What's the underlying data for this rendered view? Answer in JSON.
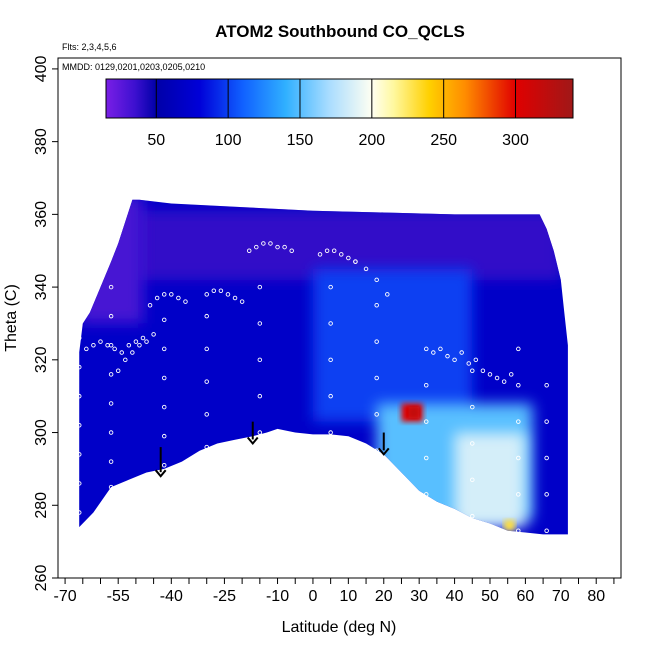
{
  "chart_data": {
    "type": "heatmap",
    "title": "ATOM2 Southbound CO_QCLS",
    "annotations": {
      "flights": "Flts: 2,3,4,5,6",
      "dates": "MMDD: 0129,0201,0203,0205,0210"
    },
    "xlabel": "Latitude (deg N)",
    "ylabel": "Theta (C)",
    "xlim": [
      -72,
      87
    ],
    "ylim": [
      260,
      403
    ],
    "x_ticks": [
      -70,
      -65,
      -60,
      -55,
      -50,
      -45,
      -40,
      -35,
      -30,
      -25,
      -20,
      -15,
      -10,
      -5,
      0,
      5,
      10,
      15,
      20,
      25,
      30,
      35,
      40,
      45,
      50,
      55,
      60,
      65,
      70,
      75,
      80,
      85
    ],
    "x_tick_labels": [
      "-70",
      "-55",
      "-40",
      "-25",
      "-10",
      "0",
      "10",
      "20",
      "30",
      "40",
      "50",
      "60",
      "70",
      "80"
    ],
    "x_tick_label_values": [
      -70,
      -55,
      -40,
      -25,
      -10,
      0,
      10,
      20,
      30,
      40,
      50,
      60,
      70,
      80
    ],
    "y_ticks": [
      260,
      280,
      300,
      320,
      340,
      360,
      380,
      400
    ],
    "y_tick_labels": [
      "260",
      "280",
      "300",
      "320",
      "340",
      "360",
      "380",
      "400"
    ],
    "colorbar": {
      "range": [
        15,
        340
      ],
      "ticks": [
        50,
        100,
        150,
        200,
        250,
        300
      ],
      "tick_labels": [
        "50",
        "100",
        "150",
        "200",
        "250",
        "300"
      ],
      "stops": [
        {
          "v": 15,
          "c": "#7a1fe6"
        },
        {
          "v": 35,
          "c": "#3d10d0"
        },
        {
          "v": 50,
          "c": "#0000a8"
        },
        {
          "v": 80,
          "c": "#0000d8"
        },
        {
          "v": 110,
          "c": "#1060ff"
        },
        {
          "v": 140,
          "c": "#30b0ff"
        },
        {
          "v": 170,
          "c": "#a8dcff"
        },
        {
          "v": 200,
          "c": "#fffff2"
        },
        {
          "v": 215,
          "c": "#fff8a0"
        },
        {
          "v": 240,
          "c": "#ffd000"
        },
        {
          "v": 265,
          "c": "#ff8c00"
        },
        {
          "v": 300,
          "c": "#e00000"
        },
        {
          "v": 340,
          "c": "#a01818"
        }
      ]
    },
    "surface_boundary": [
      [
        -66,
        274
      ],
      [
        -62,
        278
      ],
      [
        -57,
        285
      ],
      [
        -52,
        287
      ],
      [
        -47,
        289
      ],
      [
        -42,
        290
      ],
      [
        -37,
        292
      ],
      [
        -32,
        295
      ],
      [
        -27,
        297
      ],
      [
        -22,
        298
      ],
      [
        -17,
        299
      ],
      [
        -13,
        300
      ],
      [
        -10,
        301
      ],
      [
        -5,
        300
      ],
      [
        0,
        299.5
      ],
      [
        5,
        299.5
      ],
      [
        10,
        299
      ],
      [
        15,
        297
      ],
      [
        20,
        294
      ],
      [
        25,
        289
      ],
      [
        30,
        284
      ],
      [
        35,
        281
      ],
      [
        40,
        279
      ],
      [
        45,
        276.5
      ],
      [
        50,
        275
      ],
      [
        55,
        273
      ],
      [
        60,
        272.5
      ],
      [
        65,
        272
      ],
      [
        72,
        272
      ]
    ],
    "top_boundary": [
      [
        -66,
        322
      ],
      [
        -65,
        330
      ],
      [
        -63,
        333
      ],
      [
        -60,
        340
      ],
      [
        -57,
        347
      ],
      [
        -55,
        352
      ],
      [
        -53,
        358
      ],
      [
        -51,
        364
      ],
      [
        -49,
        364
      ],
      [
        -40,
        363
      ],
      [
        -20,
        362
      ],
      [
        0,
        361
      ],
      [
        20,
        360.5
      ],
      [
        40,
        360
      ],
      [
        60,
        360
      ],
      [
        64,
        360
      ],
      [
        66,
        356
      ],
      [
        68,
        350
      ],
      [
        70,
        342
      ],
      [
        71,
        333
      ],
      [
        72,
        324
      ]
    ],
    "field_regions": [
      {
        "name": "background",
        "value": 70
      },
      {
        "name": "upper-band",
        "lat": [
          -50,
          70
        ],
        "theta": [
          342,
          361
        ],
        "value": 38
      },
      {
        "name": "southern-cap",
        "lat": [
          -66,
          -48
        ],
        "theta": [
          330,
          365
        ],
        "value": 32
      },
      {
        "name": "mid-blue-band",
        "lat": [
          0,
          45
        ],
        "theta": [
          303,
          345
        ],
        "value": 100
      },
      {
        "name": "tropical-lower",
        "lat": [
          18,
          62
        ],
        "theta": [
          276,
          308
        ],
        "value": 150
      },
      {
        "name": "tropical-plume",
        "lat": [
          40,
          60
        ],
        "theta": [
          274,
          300
        ],
        "value": 185
      },
      {
        "name": "hotspot",
        "lat": [
          25,
          31
        ],
        "theta": [
          303,
          308
        ],
        "value": 300
      },
      {
        "name": "hotspot-core",
        "lat": [
          27,
          30
        ],
        "theta": [
          304,
          307
        ],
        "value": 320
      },
      {
        "name": "yellow-pocket",
        "lat": [
          54,
          57
        ],
        "theta": [
          273,
          276
        ],
        "value": 230
      }
    ],
    "flight_tracks": [
      {
        "lat": [
          -64,
          -62,
          -60,
          -58,
          -56,
          -54,
          -52,
          -50,
          -48
        ],
        "theta": [
          323,
          324,
          325,
          324,
          323,
          322,
          324,
          325,
          326
        ]
      },
      {
        "lat": [
          -55,
          -53,
          -51,
          -49,
          -47,
          -45
        ],
        "theta": [
          317,
          320,
          322,
          324,
          325,
          327
        ]
      },
      {
        "lat": [
          -46,
          -44,
          -42,
          -40,
          -38,
          -36
        ],
        "theta": [
          335,
          337,
          338,
          338,
          337,
          336
        ]
      },
      {
        "lat": [
          -30,
          -28,
          -26,
          -24,
          -22,
          -20
        ],
        "theta": [
          338,
          339,
          339,
          338,
          337,
          336
        ]
      },
      {
        "lat": [
          -18,
          -16,
          -14,
          -12,
          -10,
          -8,
          -6
        ],
        "theta": [
          350,
          351,
          352,
          352,
          351,
          351,
          350
        ]
      },
      {
        "lat": [
          2,
          4,
          6,
          8,
          10,
          12
        ],
        "theta": [
          349,
          350,
          350,
          349,
          348,
          347
        ]
      },
      {
        "lat": [
          12,
          15,
          18,
          21
        ],
        "theta": [
          347,
          345,
          342,
          338
        ]
      },
      {
        "lat": [
          34,
          36,
          38,
          40,
          42,
          44
        ],
        "theta": [
          322,
          323,
          321,
          320,
          322,
          319
        ]
      },
      {
        "lat": [
          46,
          48,
          50,
          52,
          54,
          56
        ],
        "theta": [
          320,
          317,
          316,
          315,
          314,
          316
        ]
      },
      {
        "lat": [
          -66,
          -66,
          -66,
          -66,
          -66,
          -66,
          -66
        ],
        "theta": [
          278,
          286,
          294,
          302,
          310,
          318,
          326
        ]
      },
      {
        "lat": [
          -57,
          -57,
          -57,
          -57,
          -57,
          -57,
          -57,
          -57
        ],
        "theta": [
          285,
          292,
          300,
          308,
          316,
          324,
          332,
          340
        ]
      },
      {
        "lat": [
          -42,
          -42,
          -42,
          -42,
          -42,
          -42
        ],
        "theta": [
          291,
          299,
          307,
          315,
          323,
          331
        ]
      },
      {
        "lat": [
          -30,
          -30,
          -30,
          -30,
          -30
        ],
        "theta": [
          296,
          305,
          314,
          323,
          332
        ]
      },
      {
        "lat": [
          -15,
          -15,
          -15,
          -15,
          -15
        ],
        "theta": [
          300,
          310,
          320,
          330,
          340
        ]
      },
      {
        "lat": [
          5,
          5,
          5,
          5,
          5
        ],
        "theta": [
          300,
          310,
          320,
          330,
          340
        ]
      },
      {
        "lat": [
          18,
          18,
          18,
          18,
          18
        ],
        "theta": [
          295,
          305,
          315,
          325,
          335
        ]
      },
      {
        "lat": [
          32,
          32,
          32,
          32,
          32
        ],
        "theta": [
          283,
          293,
          303,
          313,
          323
        ]
      },
      {
        "lat": [
          45,
          45,
          45,
          45,
          45
        ],
        "theta": [
          277,
          287,
          297,
          307,
          317
        ]
      },
      {
        "lat": [
          58,
          58,
          58,
          58,
          58,
          58
        ],
        "theta": [
          273,
          283,
          293,
          303,
          313,
          323
        ]
      },
      {
        "lat": [
          66,
          66,
          66,
          66,
          66
        ],
        "theta": [
          273,
          283,
          293,
          303,
          313
        ]
      }
    ],
    "arrows": [
      {
        "lat": -43,
        "theta_top": 296,
        "theta_bottom": 288
      },
      {
        "lat": -17,
        "theta_top": 303,
        "theta_bottom": 297
      },
      {
        "lat": 20,
        "theta_top": 300,
        "theta_bottom": 294
      }
    ],
    "grid": false
  }
}
